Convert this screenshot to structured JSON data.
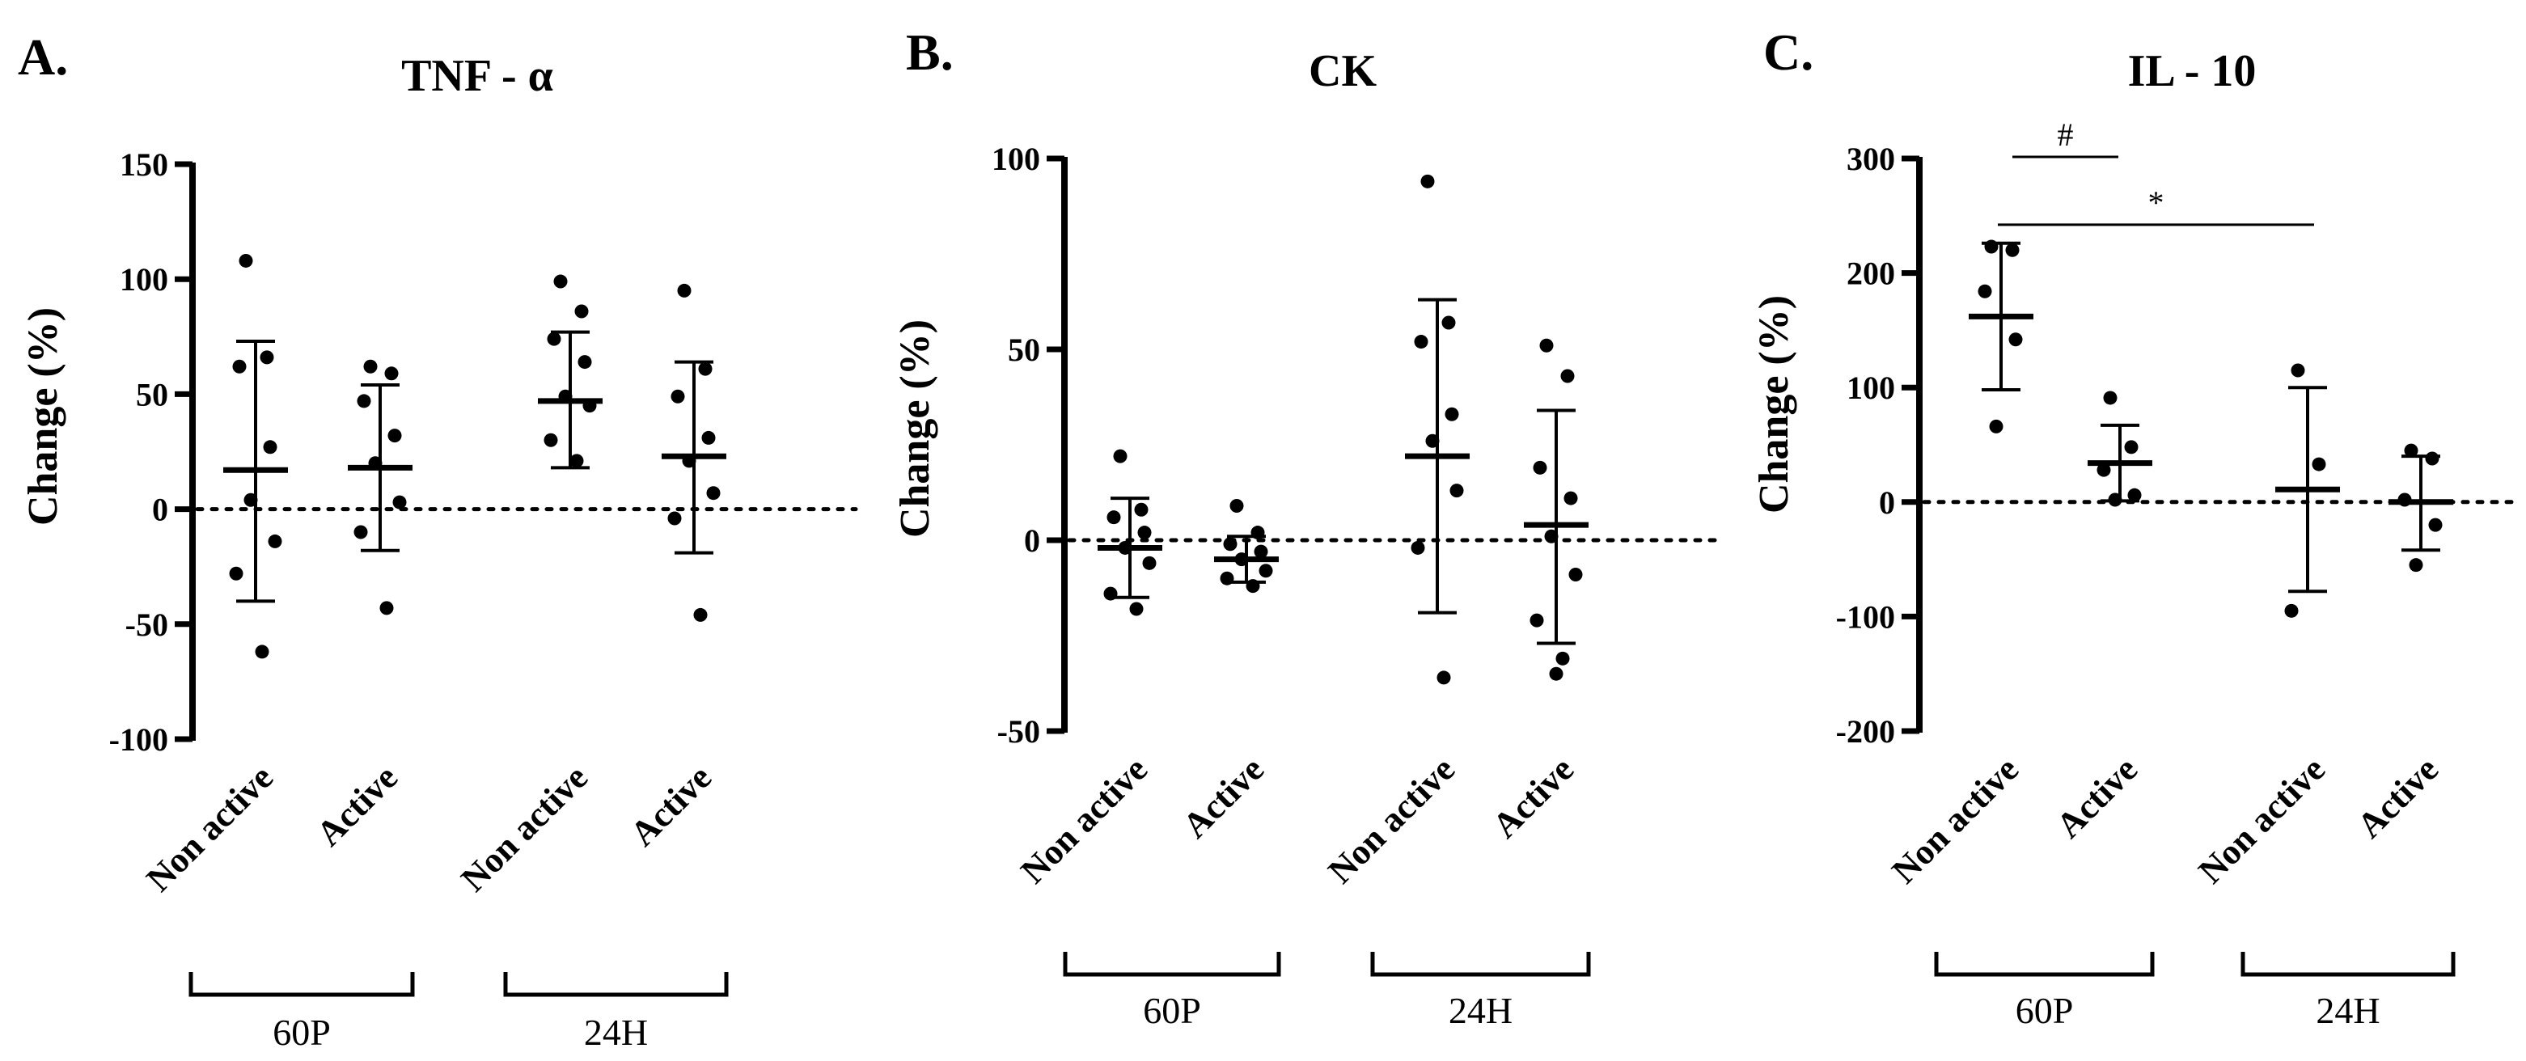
{
  "chart_data": [
    {
      "panel": "A.",
      "title": "TNF - α",
      "type": "scatter",
      "ylabel": "Change (%)",
      "ylim": [
        -100,
        150
      ],
      "yticks": [
        150,
        100,
        50,
        0,
        -50,
        -100
      ],
      "reference_line": 0,
      "categories": [
        "Non active",
        "Active",
        "Non active",
        "Active"
      ],
      "groups": [
        {
          "label": "60P",
          "members": [
            0,
            1
          ]
        },
        {
          "label": "24H",
          "members": [
            2,
            3
          ]
        }
      ],
      "series": [
        {
          "name": "60P Non active",
          "mean": 17,
          "sd_low": -40,
          "sd_high": 73,
          "points": [
            108,
            66,
            62,
            27,
            4,
            -14,
            -28,
            -62
          ]
        },
        {
          "name": "60P Active",
          "mean": 18,
          "sd_low": -18,
          "sd_high": 54,
          "points": [
            62,
            59,
            47,
            32,
            20,
            3,
            -10,
            -43
          ]
        },
        {
          "name": "24H Non active",
          "mean": 47,
          "sd_low": 18,
          "sd_high": 77,
          "points": [
            99,
            86,
            74,
            64,
            49,
            45,
            30,
            21
          ]
        },
        {
          "name": "24H Active",
          "mean": 23,
          "sd_low": -19,
          "sd_high": 64,
          "points": [
            95,
            61,
            49,
            31,
            21,
            7,
            -4,
            -46
          ]
        }
      ],
      "significance": []
    },
    {
      "panel": "B.",
      "title": "CK",
      "type": "scatter",
      "ylabel": "Change (%)",
      "ylim": [
        -50,
        100
      ],
      "yticks": [
        100,
        50,
        0,
        -50
      ],
      "reference_line": 0,
      "categories": [
        "Non active",
        "Active",
        "Non active",
        "Active"
      ],
      "groups": [
        {
          "label": "60P",
          "members": [
            0,
            1
          ]
        },
        {
          "label": "24H",
          "members": [
            2,
            3
          ]
        }
      ],
      "series": [
        {
          "name": "60P Non active",
          "mean": -2,
          "sd_low": -15,
          "sd_high": 11,
          "points": [
            22,
            8,
            6,
            2,
            -2,
            -6,
            -14,
            -18
          ]
        },
        {
          "name": "60P Active",
          "mean": -5,
          "sd_low": -11,
          "sd_high": 1,
          "points": [
            9,
            2,
            -1,
            -3,
            -5,
            -8,
            -10,
            -12
          ]
        },
        {
          "name": "24H Non active",
          "mean": 22,
          "sd_low": -19,
          "sd_high": 63,
          "points": [
            94,
            57,
            52,
            33,
            26,
            13,
            -2,
            -36
          ]
        },
        {
          "name": "24H Active",
          "mean": 4,
          "sd_low": -27,
          "sd_high": 34,
          "points": [
            51,
            43,
            19,
            11,
            1,
            -9,
            -21,
            -31,
            -35
          ]
        }
      ],
      "significance": []
    },
    {
      "panel": "C.",
      "title": "IL - 10",
      "type": "scatter",
      "ylabel": "Change (%)",
      "ylim": [
        -200,
        300
      ],
      "yticks": [
        300,
        200,
        100,
        0,
        -100,
        -200
      ],
      "reference_line": 0,
      "categories": [
        "Non active",
        "Active",
        "Non active",
        "Active"
      ],
      "groups": [
        {
          "label": "60P",
          "members": [
            0,
            1
          ]
        },
        {
          "label": "24H",
          "members": [
            2,
            3
          ]
        }
      ],
      "series": [
        {
          "name": "60P Non active",
          "mean": 162,
          "sd_low": 98,
          "sd_high": 226,
          "points": [
            223,
            220,
            184,
            142,
            66
          ]
        },
        {
          "name": "60P Active",
          "mean": 34,
          "sd_low": 1,
          "sd_high": 67,
          "points": [
            91,
            48,
            28,
            6,
            2
          ]
        },
        {
          "name": "24H Non active",
          "mean": 11,
          "sd_low": -78,
          "sd_high": 100,
          "points": [
            115,
            33,
            -95
          ]
        },
        {
          "name": "24H Active",
          "mean": 0,
          "sd_low": -42,
          "sd_high": 40,
          "points": [
            45,
            38,
            2,
            -20,
            -55
          ]
        }
      ],
      "significance": [
        {
          "symbol": "#",
          "from": 0,
          "to": 1,
          "y": 300
        },
        {
          "symbol": "*",
          "from": 0,
          "to": 2,
          "y": 245
        }
      ]
    }
  ]
}
